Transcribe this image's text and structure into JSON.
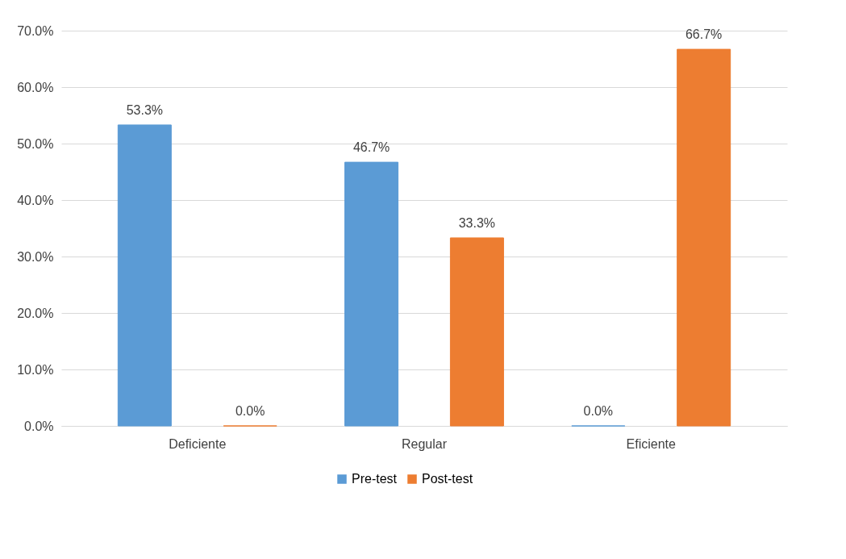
{
  "chart_data": {
    "type": "bar",
    "categories": [
      "Deficiente",
      "Regular",
      "Eficiente"
    ],
    "series": [
      {
        "name": "Pre-test",
        "color": "#5b9bd5",
        "values": [
          53.3,
          46.7,
          0.0
        ],
        "value_labels": [
          "53.3%",
          "46.7%",
          "0.0%"
        ]
      },
      {
        "name": "Post-test",
        "color": "#ed7d31",
        "values": [
          0.0,
          33.3,
          66.7
        ],
        "value_labels": [
          "0.0%",
          "33.3%",
          "66.7%"
        ]
      }
    ],
    "ylim": [
      0,
      70
    ],
    "yticks": [
      {
        "value": 0,
        "label": "0.0%"
      },
      {
        "value": 10,
        "label": "10.0%"
      },
      {
        "value": 20,
        "label": "20.0%"
      },
      {
        "value": 30,
        "label": "30.0%"
      },
      {
        "value": 40,
        "label": "40.0%"
      },
      {
        "value": 50,
        "label": "50.0%"
      },
      {
        "value": 60,
        "label": "60.0%"
      },
      {
        "value": 70,
        "label": "70.0%"
      }
    ],
    "grid": "y",
    "legend": "bottom"
  }
}
